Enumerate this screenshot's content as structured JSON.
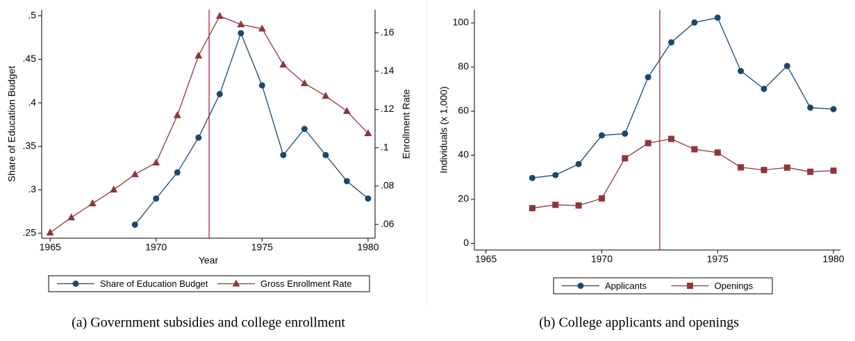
{
  "chart_data": [
    {
      "type": "line",
      "caption": "(a)  Government subsidies and college enrollment",
      "xlabel": "Year",
      "ylabel": "Share of Education Budget",
      "y2label": "Enrollment Rate",
      "x": [
        1965,
        1966,
        1967,
        1968,
        1969,
        1970,
        1971,
        1972,
        1973,
        1974,
        1975,
        1976,
        1977,
        1978,
        1979,
        1980
      ],
      "xlim": [
        1964.6,
        1980.33
      ],
      "xticks": [
        1965,
        1970,
        1975,
        1980
      ],
      "ylim": [
        0.2444,
        0.507
      ],
      "yticks": [
        {
          "value": 0.25,
          "label": ".25"
        },
        {
          "value": 0.3,
          "label": ".3"
        },
        {
          "value": 0.35,
          "label": ".35"
        },
        {
          "value": 0.4,
          "label": ".4"
        },
        {
          "value": 0.45,
          "label": ".45"
        },
        {
          "value": 0.5,
          "label": ".5"
        }
      ],
      "y2lim": [
        0.0528,
        0.172
      ],
      "y2ticks": [
        {
          "value": 0.06,
          "label": ".06"
        },
        {
          "value": 0.08,
          "label": ".08"
        },
        {
          "value": 0.1,
          "label": ".1"
        },
        {
          "value": 0.12,
          "label": ".12"
        },
        {
          "value": 0.14,
          "label": ".14"
        },
        {
          "value": 0.16,
          "label": ".16"
        }
      ],
      "vline": 1972.5,
      "vline_color": "#c10534",
      "legend": "bottom",
      "series": [
        {
          "name": "Share of Education Budget",
          "color": "#1a476f",
          "marker": "circle",
          "values": [
            null,
            null,
            null,
            null,
            0.26,
            0.29,
            0.32,
            0.36,
            0.41,
            0.48,
            0.42,
            0.34,
            0.37,
            0.34,
            0.31,
            0.29
          ]
        },
        {
          "name": "Gross Enrollment Rate",
          "color": "#90353b",
          "marker": "triangle",
          "axis": "y2",
          "values": [
            0.0557,
            0.0636,
            0.0709,
            0.0781,
            0.0861,
            0.0922,
            0.1169,
            0.148,
            0.1687,
            0.1643,
            0.1621,
            0.1433,
            0.1336,
            0.127,
            0.1191,
            0.1075
          ]
        }
      ]
    },
    {
      "type": "line",
      "caption": "(b)  College applicants and openings",
      "ylabel": "Individuals (x 1,000)",
      "x": [
        1967,
        1968,
        1969,
        1970,
        1971,
        1972,
        1973,
        1974,
        1975,
        1976,
        1977,
        1978,
        1979,
        1980
      ],
      "xlim": [
        1964.5,
        1980.3
      ],
      "xticks": [
        1965,
        1970,
        1975,
        1980
      ],
      "ylim": [
        -3,
        106
      ],
      "yticks": [
        0,
        20,
        40,
        60,
        80,
        100
      ],
      "vline": 1972.5,
      "vline_color": "#c10534",
      "legend": "bottom",
      "series": [
        {
          "name": "Applicants",
          "color": "#1a476f",
          "marker": "circle",
          "values": [
            29.7,
            31,
            36,
            49,
            49.8,
            75.4,
            91.2,
            100.2,
            102.4,
            78.2,
            70.1,
            80.5,
            61.6,
            60.9
          ]
        },
        {
          "name": "Openings",
          "color": "#90353b",
          "marker": "square",
          "values": [
            16,
            17.5,
            17.2,
            20.4,
            38.6,
            45.5,
            47.4,
            42.7,
            41.2,
            34.5,
            33.3,
            34.4,
            32.5,
            33
          ]
        }
      ]
    }
  ]
}
